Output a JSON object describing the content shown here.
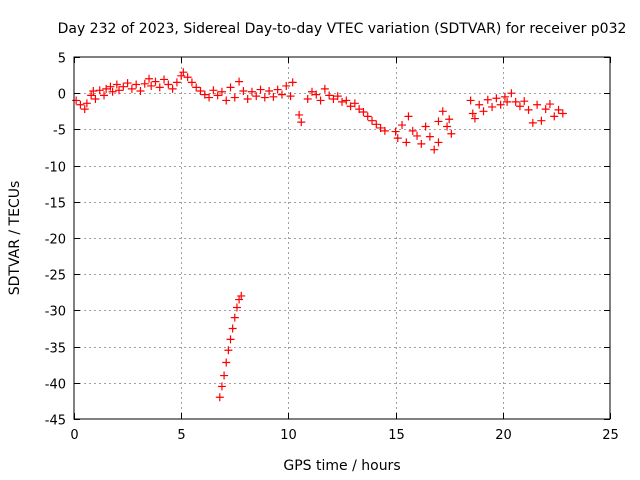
{
  "chart_data": {
    "type": "scatter",
    "title": "Day 232 of 2023, Sidereal Day-to-day VTEC variation (SDTVAR) for receiver p032",
    "xlabel": "GPS time / hours",
    "ylabel": "SDTVAR / TECUs",
    "xlim": [
      0,
      25
    ],
    "ylim": [
      -45,
      5
    ],
    "xticks": [
      0,
      5,
      10,
      15,
      20,
      25
    ],
    "yticks": [
      5,
      0,
      -5,
      -10,
      -15,
      -20,
      -25,
      -30,
      -35,
      -40,
      -45
    ],
    "grid": true,
    "marker": "plus",
    "color": "#ff0000",
    "series": [
      {
        "name": "SDTVAR",
        "points": [
          [
            0.1,
            -1.0
          ],
          [
            0.3,
            -1.6
          ],
          [
            0.5,
            -2.2
          ],
          [
            0.6,
            -1.4
          ],
          [
            0.8,
            -0.3
          ],
          [
            0.9,
            0.3
          ],
          [
            1.0,
            -0.8
          ],
          [
            1.2,
            0.4
          ],
          [
            1.4,
            -0.3
          ],
          [
            1.5,
            0.6
          ],
          [
            1.7,
            0.9
          ],
          [
            1.8,
            0.2
          ],
          [
            2.0,
            1.2
          ],
          [
            2.1,
            0.4
          ],
          [
            2.3,
            0.9
          ],
          [
            2.5,
            1.4
          ],
          [
            2.7,
            0.6
          ],
          [
            2.9,
            1.2
          ],
          [
            3.1,
            0.3
          ],
          [
            3.3,
            1.3
          ],
          [
            3.5,
            2.0
          ],
          [
            3.6,
            1.0
          ],
          [
            3.8,
            1.6
          ],
          [
            4.0,
            0.8
          ],
          [
            4.2,
            1.9
          ],
          [
            4.4,
            1.2
          ],
          [
            4.6,
            0.6
          ],
          [
            4.8,
            1.5
          ],
          [
            5.0,
            2.4
          ],
          [
            5.1,
            2.9
          ],
          [
            5.3,
            2.2
          ],
          [
            5.5,
            1.5
          ],
          [
            5.7,
            0.8
          ],
          [
            5.9,
            0.3
          ],
          [
            6.1,
            -0.2
          ],
          [
            6.3,
            -0.6
          ],
          [
            6.5,
            0.4
          ],
          [
            6.7,
            -0.3
          ],
          [
            6.9,
            0.2
          ],
          [
            7.1,
            -1.0
          ],
          [
            7.3,
            0.8
          ],
          [
            7.5,
            -0.6
          ],
          [
            7.7,
            1.6
          ],
          [
            7.9,
            0.3
          ],
          [
            8.1,
            -0.8
          ],
          [
            8.3,
            0.2
          ],
          [
            8.5,
            -0.4
          ],
          [
            8.7,
            0.5
          ],
          [
            8.9,
            -0.6
          ],
          [
            9.1,
            0.3
          ],
          [
            9.3,
            -0.5
          ],
          [
            9.5,
            0.5
          ],
          [
            9.7,
            -0.2
          ],
          [
            9.9,
            1.0
          ],
          [
            10.1,
            -0.4
          ],
          [
            10.2,
            1.5
          ],
          [
            10.5,
            -3.0
          ],
          [
            10.6,
            -4.0
          ],
          [
            10.9,
            -0.8
          ],
          [
            11.1,
            0.2
          ],
          [
            11.3,
            -0.2
          ],
          [
            11.5,
            -1.0
          ],
          [
            11.7,
            0.6
          ],
          [
            11.9,
            -0.3
          ],
          [
            12.1,
            -0.8
          ],
          [
            12.3,
            -0.4
          ],
          [
            12.5,
            -1.2
          ],
          [
            12.7,
            -1.0
          ],
          [
            12.9,
            -1.8
          ],
          [
            13.1,
            -1.4
          ],
          [
            13.3,
            -2.2
          ],
          [
            13.5,
            -2.6
          ],
          [
            13.7,
            -3.2
          ],
          [
            13.9,
            -3.8
          ],
          [
            14.1,
            -4.3
          ],
          [
            14.3,
            -4.8
          ],
          [
            14.5,
            -5.2
          ],
          [
            15.0,
            -5.3
          ],
          [
            15.1,
            -6.2
          ],
          [
            15.3,
            -4.4
          ],
          [
            15.5,
            -6.8
          ],
          [
            15.6,
            -3.2
          ],
          [
            15.8,
            -5.2
          ],
          [
            16.0,
            -5.9
          ],
          [
            16.2,
            -7.0
          ],
          [
            16.4,
            -4.6
          ],
          [
            16.6,
            -6.0
          ],
          [
            16.8,
            -7.8
          ],
          [
            17.0,
            -3.9
          ],
          [
            17.0,
            -6.8
          ],
          [
            17.2,
            -2.5
          ],
          [
            17.4,
            -4.6
          ],
          [
            17.5,
            -3.6
          ],
          [
            17.6,
            -5.6
          ],
          [
            18.5,
            -1.0
          ],
          [
            18.6,
            -2.8
          ],
          [
            18.7,
            -3.5
          ],
          [
            18.9,
            -1.6
          ],
          [
            19.1,
            -2.5
          ],
          [
            19.3,
            -0.9
          ],
          [
            19.5,
            -1.9
          ],
          [
            19.7,
            -0.7
          ],
          [
            19.9,
            -1.6
          ],
          [
            20.1,
            -0.5
          ],
          [
            20.2,
            -1.2
          ],
          [
            20.4,
            0.0
          ],
          [
            20.6,
            -1.2
          ],
          [
            20.8,
            -1.8
          ],
          [
            21.0,
            -1.1
          ],
          [
            21.2,
            -2.3
          ],
          [
            21.4,
            -4.1
          ],
          [
            21.6,
            -1.6
          ],
          [
            21.8,
            -3.8
          ],
          [
            22.0,
            -2.2
          ],
          [
            22.2,
            -1.5
          ],
          [
            22.4,
            -3.2
          ],
          [
            22.6,
            -2.3
          ],
          [
            22.8,
            -2.8
          ],
          [
            6.8,
            -42.0
          ],
          [
            6.9,
            -40.5
          ],
          [
            7.0,
            -39.0
          ],
          [
            7.1,
            -37.2
          ],
          [
            7.2,
            -35.5
          ],
          [
            7.3,
            -34.0
          ],
          [
            7.4,
            -32.5
          ],
          [
            7.5,
            -31.0
          ],
          [
            7.6,
            -29.6
          ],
          [
            7.7,
            -28.5
          ],
          [
            7.8,
            -28.0
          ]
        ]
      }
    ]
  }
}
